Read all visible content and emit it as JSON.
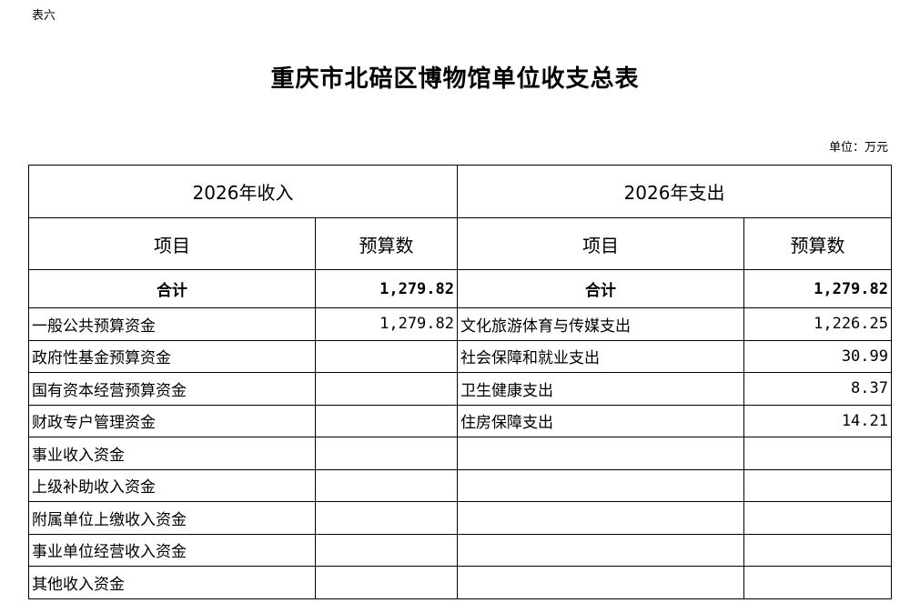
{
  "doc_label": "表六",
  "title": "重庆市北碚区博物馆单位收支总表",
  "unit": "单位：万元",
  "income_header": "2026年收入",
  "expense_header": "2026年支出",
  "col_item": "项目",
  "col_budget": "预算数",
  "total_label": "合计",
  "income_total": "1,279.82",
  "expense_total": "1,279.82",
  "rows": [
    {
      "income_item": "一般公共预算资金",
      "income_value": "1,279.82",
      "expense_item": "文化旅游体育与传媒支出",
      "expense_value": "1,226.25"
    },
    {
      "income_item": "政府性基金预算资金",
      "income_value": "",
      "expense_item": "社会保障和就业支出",
      "expense_value": "30.99"
    },
    {
      "income_item": "国有资本经营预算资金",
      "income_value": "",
      "expense_item": "卫生健康支出",
      "expense_value": "8.37"
    },
    {
      "income_item": "财政专户管理资金",
      "income_value": "",
      "expense_item": "住房保障支出",
      "expense_value": "14.21"
    },
    {
      "income_item": "事业收入资金",
      "income_value": "",
      "expense_item": "",
      "expense_value": ""
    },
    {
      "income_item": "上级补助收入资金",
      "income_value": "",
      "expense_item": "",
      "expense_value": ""
    },
    {
      "income_item": "附属单位上缴收入资金",
      "income_value": "",
      "expense_item": "",
      "expense_value": ""
    },
    {
      "income_item": "事业单位经营收入资金",
      "income_value": "",
      "expense_item": "",
      "expense_value": ""
    },
    {
      "income_item": "其他收入资金",
      "income_value": "",
      "expense_item": "",
      "expense_value": ""
    }
  ]
}
